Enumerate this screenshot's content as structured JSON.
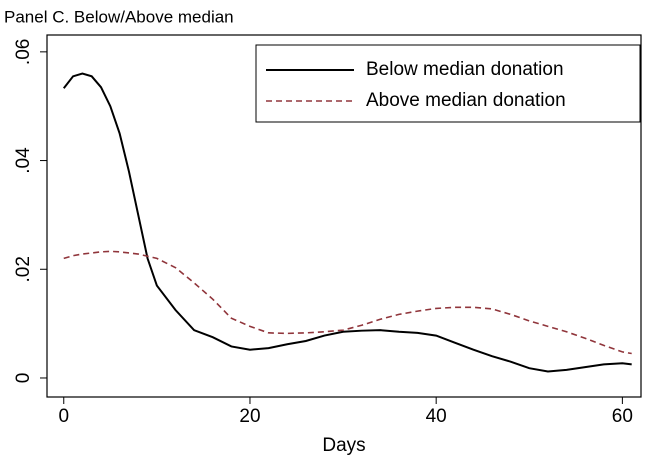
{
  "chart_data": {
    "type": "line",
    "title": "Panel C. Below/Above median",
    "x_label": "Days",
    "x": [
      0,
      1,
      2,
      3,
      4,
      5,
      6,
      7,
      8,
      9,
      10,
      12,
      14,
      16,
      18,
      20,
      22,
      24,
      26,
      28,
      30,
      32,
      34,
      36,
      38,
      40,
      42,
      44,
      46,
      48,
      50,
      52,
      54,
      56,
      58,
      60,
      61
    ],
    "series": [
      {
        "name": "Below median donation",
        "color": "#000000",
        "dash": "solid",
        "values": [
          0.0533,
          0.0555,
          0.056,
          0.0555,
          0.0535,
          0.05,
          0.045,
          0.038,
          0.03,
          0.022,
          0.017,
          0.0125,
          0.0088,
          0.0075,
          0.0058,
          0.0052,
          0.0055,
          0.0062,
          0.0068,
          0.0078,
          0.0085,
          0.0087,
          0.0088,
          0.0085,
          0.0083,
          0.0078,
          0.0065,
          0.0052,
          0.004,
          0.003,
          0.0018,
          0.0012,
          0.0015,
          0.002,
          0.0025,
          0.0027,
          0.0025
        ]
      },
      {
        "name": "Above median donation",
        "color": "#90353b",
        "dash": "dashed",
        "values": [
          0.022,
          0.0225,
          0.0228,
          0.023,
          0.0232,
          0.0233,
          0.0232,
          0.023,
          0.0228,
          0.0224,
          0.022,
          0.0203,
          0.0175,
          0.0145,
          0.011,
          0.0095,
          0.0083,
          0.0082,
          0.0083,
          0.0085,
          0.0088,
          0.0097,
          0.0108,
          0.0117,
          0.0123,
          0.0128,
          0.013,
          0.013,
          0.0127,
          0.0117,
          0.0105,
          0.0095,
          0.0085,
          0.0073,
          0.006,
          0.0048,
          0.0045
        ]
      }
    ],
    "xlim": [
      -1.8,
      62
    ],
    "xticks": [
      0,
      20,
      40,
      60
    ],
    "ylim": [
      -0.0035,
      0.0631
    ],
    "yticks": [
      0,
      {
        "value": 0.02,
        "label": ".02"
      },
      {
        "value": 0.04,
        "label": ".04"
      },
      {
        "value": 0.06,
        "label": ".06"
      }
    ],
    "legend": "top-right"
  }
}
